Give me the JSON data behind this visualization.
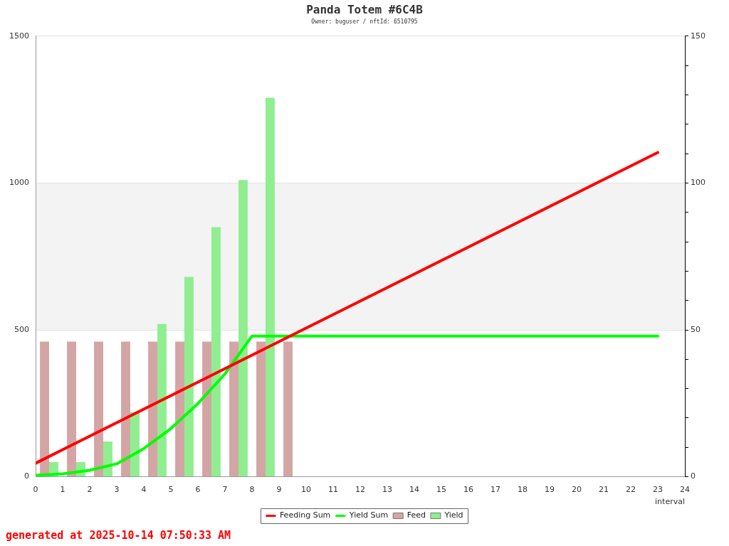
{
  "chart_data": {
    "type": "bar",
    "title": "Panda Totem #6C4B",
    "subtitle": "Owner: buguser / nftId: 6510795",
    "xlabel": "interval",
    "xlim": [
      0,
      24
    ],
    "xticks": [
      0,
      1,
      2,
      3,
      4,
      5,
      6,
      7,
      8,
      9,
      10,
      11,
      12,
      13,
      14,
      15,
      16,
      17,
      18,
      19,
      20,
      21,
      22,
      23,
      24
    ],
    "ylim": [
      0,
      1500
    ],
    "yticks": [
      0,
      500,
      1000,
      1500
    ],
    "y2lim": [
      0,
      150
    ],
    "y2ticks": [
      0,
      {
        "value": 10,
        "label": null
      },
      {
        "value": 20,
        "label": null
      },
      {
        "value": 30,
        "label": null
      },
      {
        "value": 40,
        "label": null
      },
      50,
      {
        "value": 60,
        "label": null
      },
      {
        "value": 70,
        "label": null
      },
      {
        "value": 80,
        "label": null
      },
      {
        "value": 90,
        "label": null
      },
      100,
      {
        "value": 110,
        "label": null
      },
      {
        "value": 120,
        "label": null
      },
      {
        "value": 130,
        "label": null
      },
      {
        "value": 140,
        "label": null
      },
      150
    ],
    "series": [
      {
        "name": "Feeding Sum",
        "type": "line",
        "color": "#ff0000",
        "x": [
          0,
          1,
          2,
          3,
          4,
          5,
          6,
          7,
          8,
          9,
          10,
          11,
          12,
          13,
          14,
          15,
          16,
          17,
          18,
          19,
          20,
          21,
          22,
          23
        ],
        "values": [
          46,
          92,
          138,
          184,
          230,
          276,
          322,
          368,
          414,
          460,
          506,
          552,
          598,
          644,
          690,
          736,
          782,
          828,
          874,
          920,
          966,
          1012,
          1058,
          1104
        ]
      },
      {
        "name": "Yield Sum",
        "type": "line",
        "color": "#00ff00",
        "x": [
          0,
          1,
          2,
          3,
          4,
          5,
          6,
          7,
          8,
          9,
          10,
          11,
          12,
          13,
          14,
          15,
          16,
          17,
          18,
          19,
          20,
          21,
          22,
          23
        ],
        "values": [
          5,
          10,
          22,
          44,
          96,
          164,
          249,
          350,
          479,
          479,
          479,
          479,
          479,
          479,
          479,
          479,
          479,
          479,
          479,
          479,
          479,
          479,
          479,
          479
        ]
      },
      {
        "name": "Feed",
        "axis": "y2",
        "color": "#d4a5a5",
        "x": [
          0.5,
          1.5,
          2.5,
          3.5,
          4.5,
          5.5,
          6.5,
          7.5,
          8.5,
          9.5
        ],
        "values": [
          46,
          46,
          46,
          46,
          46,
          46,
          46,
          46,
          46,
          46
        ]
      },
      {
        "name": "Yield",
        "axis": "y2",
        "color": "#90ee90",
        "x": [
          0.5,
          1.5,
          2.5,
          3.5,
          4.5,
          5.5,
          6.5,
          7.5,
          8.5
        ],
        "values": [
          5,
          5,
          12,
          22,
          52,
          68,
          85,
          101,
          129
        ]
      }
    ],
    "bands": [
      {
        "axis": "y",
        "from": 500,
        "to": 1000,
        "color": "#f3f3f3"
      }
    ],
    "grid": "y",
    "legend": "bottom",
    "marker": "none",
    "annotations": [
      "generated at 2025-10-14 07:50:33 AM"
    ]
  }
}
